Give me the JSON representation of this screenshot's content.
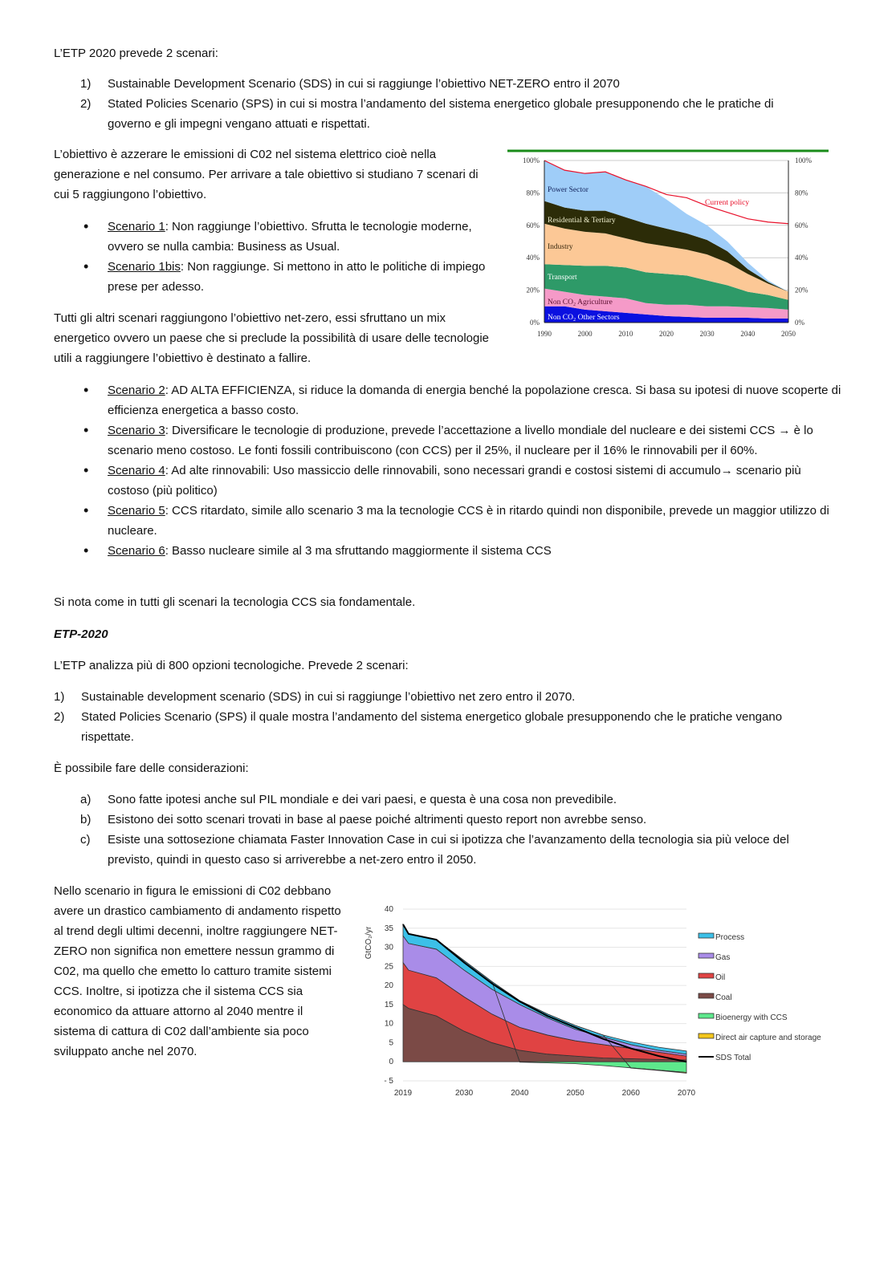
{
  "intro": "L’ETP 2020 prevede 2 scenari:",
  "list1": [
    {
      "marker": "1)",
      "text": "Sustainable Development Scenario (SDS) in cui si raggiunge l’obiettivo NET-ZERO entro il 2070"
    },
    {
      "marker": "2)",
      "text": "Stated Policies Scenario (SPS) in cui si mostra l’andamento del sistema energetico globale presupponendo che le pratiche di governo e gli impegni vengano attuati e rispettati."
    }
  ],
  "para1": "L’obiettivo è azzerare le emissioni di C02 nel sistema elettrico cioè nella generazione e nel consumo. Per arrivare a tale obiettivo si studiano 7 scenari di cui 5 raggiungono l’obiettivo.",
  "bullets1": [
    {
      "marker": "•",
      "label": "Scenario 1",
      "text": ": Non raggiunge l’obiettivo. Sfrutta le tecnologie moderne, ovvero se nulla cambia: Business as Usual."
    },
    {
      "marker": "•",
      "label": "Scenario 1bis",
      "text": ": Non raggiunge. Si mettono in atto le politiche di impiego prese per adesso."
    }
  ],
  "para2": "Tutti gli altri scenari raggiungono l’obiettivo net-zero, essi sfruttano un mix energetico ovvero un paese che si preclude la possibilità di usare delle tecnologie utili a raggiungere l’obiettivo è destinato a fallire.",
  "bullets2": [
    {
      "marker": "•",
      "label": "Scenario 2",
      "text": ": AD ALTA EFFICIENZA, si riduce la domanda di energia benché la popolazione cresca. Si basa su ipotesi di nuove scoperte di efficienza energetica a basso costo."
    },
    {
      "marker": "•",
      "label": "Scenario 3",
      "text": ": Diversificare le tecnologie di produzione, prevede l’accettazione a livello mondiale del nucleare e dei sistemi CCS → è lo scenario meno costoso. Le fonti fossili contribuiscono (con CCS) per il 25%, il nucleare per il 16% le rinnovabili per il 60%."
    },
    {
      "marker": "•",
      "label": "Scenario 4",
      "text": ": Ad alte rinnovabili:      Uso massiccio delle rinnovabili, sono necessari grandi e costosi sistemi di accumulo→ scenario più costoso (più politico)"
    },
    {
      "marker": "•",
      "label": "Scenario 5",
      "text": ": CCS ritardato, simile allo scenario 3 ma la tecnologie CCS è in ritardo quindi non disponibile, prevede un maggior utilizzo di nucleare."
    },
    {
      "marker": "•",
      "label": "Scenario 6",
      "text": ": Basso nucleare simile al 3 ma sfruttando maggiormente il sistema CCS"
    }
  ],
  "para3": "Si nota come in tutti gli scenari la tecnologia CCS sia fondamentale.",
  "heading": "ETP-2020",
  "para4": "L’ETP analizza più di 800 opzioni tecnologiche. Prevede 2 scenari:",
  "list2": [
    {
      "marker": "1)",
      "text": "Sustainable development scenario (SDS) in cui si raggiunge l’obiettivo net zero entro il 2070."
    },
    {
      "marker": "2)",
      "text": "Stated Policies Scenario (SPS) il quale mostra l’andamento del sistema energetico globale presupponendo che le pratiche vengano rispettate."
    }
  ],
  "para5": "È possibile fare delle considerazioni:",
  "list3": [
    {
      "marker": "a)",
      "text": "Sono fatte ipotesi anche sul PIL mondiale e dei vari paesi, e questa è una cosa non prevedibile."
    },
    {
      "marker": "b)",
      "text": "Esistono dei sotto scenari trovati in base al paese poiché altrimenti questo report non avrebbe senso."
    },
    {
      "marker": "c)",
      "text": "Esiste una sottosezione chiamata Faster Innovation Case in cui si ipotizza che l’avanzamento della tecnologia sia più veloce del previsto, quindi in questo caso si arriverebbe a net-zero entro il 2050."
    }
  ],
  "para6": "Nello scenario in figura le emissioni di C02 debbano avere un drastico cambiamento di andamento rispetto al trend degli ultimi decenni, inoltre raggiungere NET-ZERO non significa non emettere nessun grammo di C02, ma quello che emetto lo catturo tramite sistemi CCS.  Inoltre, si ipotizza che il sistema CCS sia economico da attuare attorno al 2040 mentre il sistema di cattura di C02 dall’ambiente sia poco sviluppato anche nel 2070.",
  "chart_data": [
    {
      "type": "area",
      "stacked": true,
      "x": [
        1990,
        1995,
        2000,
        2005,
        2010,
        2015,
        2020,
        2025,
        2030,
        2035,
        2040,
        2045,
        2050
      ],
      "xticks": [
        "1990",
        "2000",
        "2010",
        "2020",
        "2030",
        "2040",
        "2050"
      ],
      "yticks": [
        "0%",
        "20%",
        "40%",
        "60%",
        "80%",
        "100%"
      ],
      "ylim": [
        0,
        100
      ],
      "grid": true,
      "series": [
        {
          "name": "Non CO₂ Other Sectors",
          "color": "#0a10e0",
          "label_color": "#ffffff",
          "values": [
            10,
            10,
            8,
            7,
            6,
            5,
            4,
            3.5,
            3,
            3,
            3,
            2.5,
            2.5
          ]
        },
        {
          "name": "Non CO₂ Agriculture",
          "color": "#f59ac8",
          "label_color": "#5a1030",
          "values": [
            11,
            9,
            9,
            9,
            9,
            7,
            7,
            7.5,
            7,
            7,
            6.5,
            6.5,
            5.5
          ]
        },
        {
          "name": "Transport",
          "color": "#2e9a68",
          "label_color": "#ffffff",
          "values": [
            15,
            16.5,
            18,
            19,
            19,
            19,
            19,
            18,
            16,
            13,
            9.5,
            8,
            6
          ]
        },
        {
          "name": "Industry",
          "color": "#fcc896",
          "label_color": "#3a2a10",
          "values": [
            25,
            22.5,
            21,
            20,
            18,
            18,
            17,
            16,
            16,
            14,
            11,
            7,
            5
          ]
        },
        {
          "name": "Residential & Tertiary",
          "color": "#2c2c08",
          "label_color": "#f0f0d0",
          "values": [
            14,
            13,
            13,
            14,
            13,
            12,
            11,
            10,
            9,
            7,
            3,
            1,
            0
          ]
        },
        {
          "name": "Power Sector",
          "color": "#9fcdf8",
          "label_color": "#10205a",
          "values": [
            25,
            23,
            23,
            24,
            23,
            23,
            18,
            12,
            9,
            6,
            4,
            1,
            0
          ]
        }
      ],
      "lines": [
        {
          "name": "Current policy",
          "color": "#e8102a",
          "values": [
            100,
            94,
            92,
            93,
            88,
            84,
            79,
            77,
            72,
            68,
            64,
            62,
            61
          ]
        }
      ],
      "header_rule_color": "#1a8c1a"
    },
    {
      "type": "area",
      "stacked": true,
      "ylabel": "GtCO₂/yr",
      "x": [
        2019,
        2020,
        2025,
        2030,
        2035,
        2040,
        2045,
        2050,
        2055,
        2060,
        2065,
        2070
      ],
      "xticks": [
        "2019",
        "2030",
        "2040",
        "2050",
        "2060",
        "2070"
      ],
      "yticks": [
        "- 5",
        "0",
        "5",
        "10",
        "15",
        "20",
        "25",
        "30",
        "35",
        "40"
      ],
      "ylim": [
        -5,
        40
      ],
      "grid": true,
      "legend": "right",
      "series": [
        {
          "name": "Coal",
          "color": "#7b4a46",
          "values": [
            15,
            14,
            12,
            8,
            5,
            3,
            2,
            1.5,
            1,
            0.8,
            0.6,
            0.5
          ]
        },
        {
          "name": "Oil",
          "color": "#e04343",
          "values": [
            11,
            10,
            10,
            9,
            7.5,
            6,
            5,
            4,
            3.5,
            2.7,
            1.9,
            1.0
          ]
        },
        {
          "name": "Gas",
          "color": "#a98ce8",
          "values": [
            7,
            7,
            7.5,
            7,
            6.5,
            6,
            4.5,
            3,
            2,
            1,
            0.5,
            0.5
          ]
        },
        {
          "name": "Process",
          "color": "#3cc0e8",
          "values": [
            3,
            2.5,
            2.5,
            2.5,
            2,
            1,
            1,
            1,
            0.5,
            0.7,
            0.8,
            0.8
          ]
        },
        {
          "name": "Bioenergy with CCS",
          "color": "#5ee88c",
          "values": [
            0,
            0,
            0,
            0,
            0,
            -0.1,
            -0.3,
            -0.5,
            -1,
            -1.6,
            -2.2,
            -2.8
          ]
        },
        {
          "name": "Direct air capture and storage",
          "color": "#f3c61c",
          "values": [
            0,
            0,
            0,
            0,
            0,
            0,
            0,
            0,
            0,
            -0.05,
            -0.1,
            -0.2
          ]
        }
      ],
      "lines": [
        {
          "name": "SDS Total",
          "color": "#000000",
          "values": [
            36,
            33.5,
            32,
            26,
            20.5,
            15.8,
            12,
            9,
            6,
            3.5,
            1.5,
            0
          ]
        }
      ],
      "legend_order": [
        "Process",
        "Gas",
        "Oil",
        "Coal",
        "Bioenergy with CCS",
        "Direct air capture and storage",
        "SDS Total"
      ]
    }
  ]
}
